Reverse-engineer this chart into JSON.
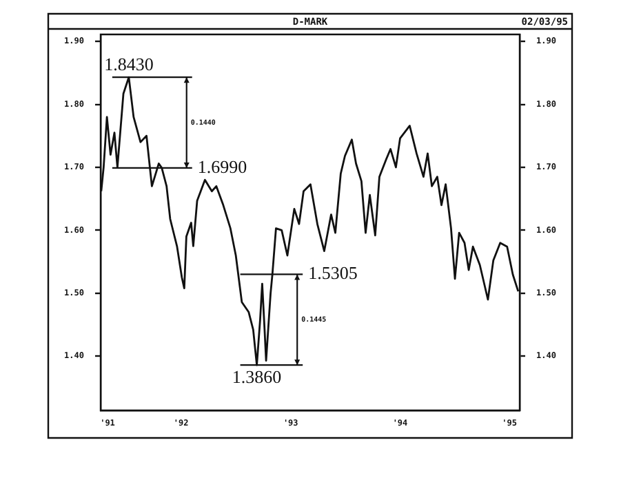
{
  "chart_data": {
    "type": "line",
    "title": "D-MARK",
    "x": [
      "1991-04-10",
      "1991-04-18",
      "1991-04-29",
      "1991-05-11",
      "1991-05-24",
      "1991-06-03",
      "1991-06-23",
      "1991-07-11",
      "1991-07-27",
      "1991-08-19",
      "1991-09-08",
      "1991-09-26",
      "1991-10-19",
      "1991-10-29",
      "1991-11-14",
      "1991-11-26",
      "1991-12-19",
      "1992-01-04",
      "1992-01-12",
      "1992-01-19",
      "1992-02-04",
      "1992-02-11",
      "1992-02-24",
      "1992-03-21",
      "1992-04-13",
      "1992-04-28",
      "1992-05-21",
      "1992-06-14",
      "1992-07-02",
      "1992-07-22",
      "1992-08-14",
      "1992-08-29",
      "1992-09-10",
      "1992-09-21",
      "1992-09-28",
      "1992-10-06",
      "1992-10-11",
      "1992-10-26",
      "1992-11-01",
      "1992-11-13",
      "1992-12-02",
      "1992-12-21",
      "1993-01-13",
      "1993-01-29",
      "1993-02-13",
      "1993-03-08",
      "1993-03-31",
      "1993-04-23",
      "1993-05-16",
      "1993-05-30",
      "1993-06-17",
      "1993-07-01",
      "1993-07-24",
      "1993-08-07",
      "1993-08-25",
      "1993-09-08",
      "1993-09-22",
      "1993-10-10",
      "1993-10-24",
      "1993-11-16",
      "1993-11-30",
      "1993-12-18",
      "1994-01-01",
      "1994-02-02",
      "1994-02-25",
      "1994-03-20",
      "1994-04-03",
      "1994-04-17",
      "1994-05-05",
      "1994-05-19",
      "1994-06-02",
      "1994-06-20",
      "1994-07-03",
      "1994-07-17",
      "1994-08-04",
      "1994-08-18",
      "1994-09-01",
      "1994-09-24",
      "1994-10-21",
      "1994-11-08",
      "1994-12-01",
      "1994-12-24",
      "1995-01-12",
      "1995-01-30"
    ],
    "series": [
      {
        "color": "#111111",
        "values": [
          1.662,
          1.7,
          1.78,
          1.72,
          1.755,
          1.7,
          1.817,
          1.843,
          1.78,
          1.74,
          1.75,
          1.67,
          1.706,
          1.699,
          1.67,
          1.618,
          1.574,
          1.525,
          1.508,
          1.59,
          1.612,
          1.575,
          1.647,
          1.68,
          1.662,
          1.67,
          1.64,
          1.603,
          1.56,
          1.486,
          1.47,
          1.442,
          1.386,
          1.457,
          1.515,
          1.442,
          1.393,
          1.5,
          1.53,
          1.603,
          1.6,
          1.56,
          1.634,
          1.61,
          1.662,
          1.673,
          1.61,
          1.567,
          1.625,
          1.596,
          1.69,
          1.718,
          1.744,
          1.706,
          1.678,
          1.596,
          1.656,
          1.592,
          1.685,
          1.713,
          1.729,
          1.7,
          1.746,
          1.766,
          1.722,
          1.685,
          1.722,
          1.67,
          1.685,
          1.64,
          1.673,
          1.603,
          1.523,
          1.596,
          1.58,
          1.537,
          1.574,
          1.545,
          1.49,
          1.552,
          1.58,
          1.574,
          1.53,
          1.503
        ]
      }
    ],
    "xlim": [
      "1991-04-08",
      "1995-02-04"
    ],
    "xticks": [
      {
        "value": "1991-05-01",
        "label": "'91"
      },
      {
        "value": "1992-01-01",
        "label": "'92"
      },
      {
        "value": "1993-01-01",
        "label": "'93"
      },
      {
        "value": "1994-01-01",
        "label": "'94"
      },
      {
        "value": "1995-01-01",
        "label": "'95"
      }
    ],
    "ylim": [
      1.314,
      1.911
    ],
    "yticks": [
      {
        "value": 1.4,
        "label": "1.40"
      },
      {
        "value": 1.5,
        "label": "1.50"
      },
      {
        "value": 1.6,
        "label": "1.60"
      },
      {
        "value": 1.7,
        "label": "1.70"
      },
      {
        "value": 1.8,
        "label": "1.80"
      },
      {
        "value": 1.9,
        "label": "1.90"
      }
    ],
    "y2lim": [
      1.314,
      1.911
    ],
    "y2ticks": [
      {
        "value": 1.4,
        "label": "1.40"
      },
      {
        "value": 1.5,
        "label": "1.50"
      },
      {
        "value": 1.6,
        "label": "1.60"
      },
      {
        "value": 1.7,
        "label": "1.70"
      },
      {
        "value": 1.8,
        "label": "1.80"
      },
      {
        "value": 1.9,
        "label": "1.90"
      }
    ],
    "grid": false,
    "legend": false,
    "marker": "none",
    "line_style": "solid",
    "annotations": [
      "02/03/95",
      "0.1440",
      "0.1445",
      {
        "text": "1.8430",
        "x": "1991-07-11",
        "y": 1.843
      },
      {
        "text": "1.6990",
        "x": "1991-10-29",
        "y": 1.699
      },
      {
        "text": "1.5305",
        "x": "1992-11-01",
        "y": 1.53
      },
      {
        "text": "1.3860",
        "x": "1992-09-10",
        "y": 1.386
      }
    ]
  }
}
